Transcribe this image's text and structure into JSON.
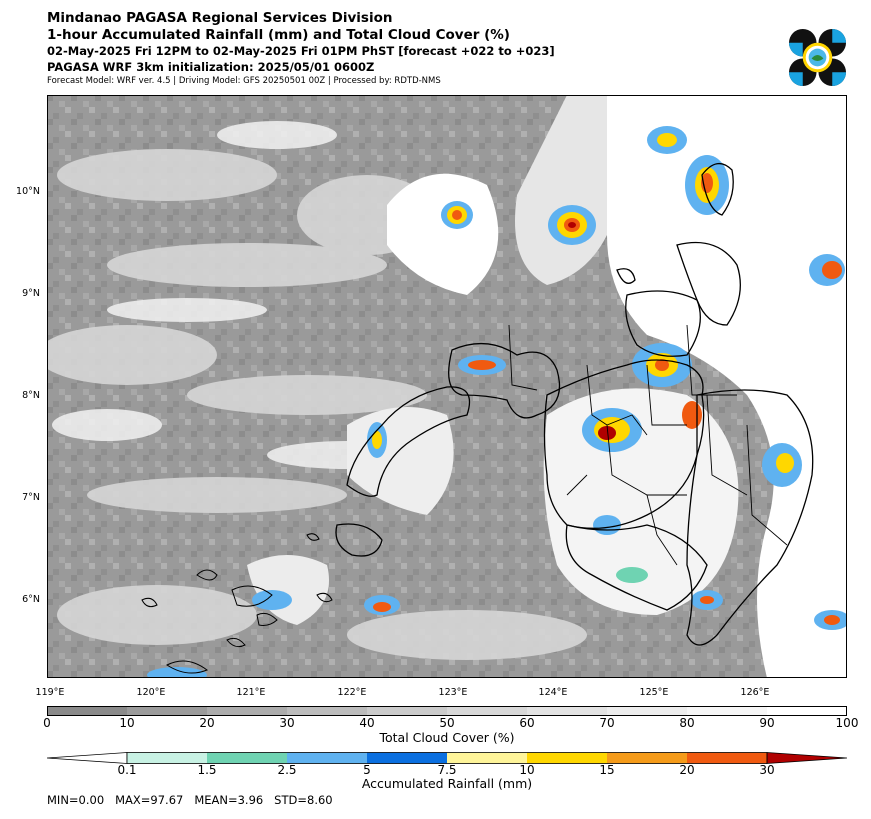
{
  "header": {
    "title": "Mindanao PAGASA Regional Services Division",
    "subtitle": "1-hour Accumulated Rainfall (mm) and Total Cloud Cover (%)",
    "valid_time": "02-May-2025 Fri 12PM to 02-May-2025 Fri 01PM PhST [forecast +022 to +023]",
    "init": "PAGASA WRF 3km initialization: 2025/05/01 0600Z",
    "model_info": "Forecast Model: WRF ver. 4.5 | Driving Model: GFS 20250501 00Z | Processed by: RDTD-NMS"
  },
  "map": {
    "lat_labels": [
      "10°N",
      "9°N",
      "8°N",
      "7°N",
      "6°N"
    ],
    "lon_labels": [
      "119°E",
      "120°E",
      "121°E",
      "122°E",
      "123°E",
      "124°E",
      "125°E",
      "126°E"
    ]
  },
  "cloud_colorbar": {
    "label": "Total Cloud Cover (%)",
    "ticks": [
      "0",
      "10",
      "20",
      "30",
      "40",
      "50",
      "60",
      "70",
      "80",
      "90",
      "100"
    ],
    "colors": [
      "#8a8a8a",
      "#9b9b9b",
      "#acacac",
      "#bcbcbc",
      "#cbcbcb",
      "#d8d8d8",
      "#e3e3e3",
      "#ededed",
      "#f6f6f6",
      "#ffffff"
    ]
  },
  "rain_colorbar": {
    "label": "Accumulated Rainfall (mm)",
    "ticks": [
      "0.1",
      "1.5",
      "2.5",
      "5",
      "7.5",
      "10",
      "15",
      "20",
      "30"
    ],
    "colors": [
      "#ffffff",
      "#c8f2e4",
      "#6fd3b2",
      "#5fb2f0",
      "#0a6fe0",
      "#fff59a",
      "#ffd700",
      "#f59b1a",
      "#f05a10",
      "#b00000"
    ]
  },
  "stats": "MIN=0.00   MAX=97.67   MEAN=3.96   STD=8.60"
}
